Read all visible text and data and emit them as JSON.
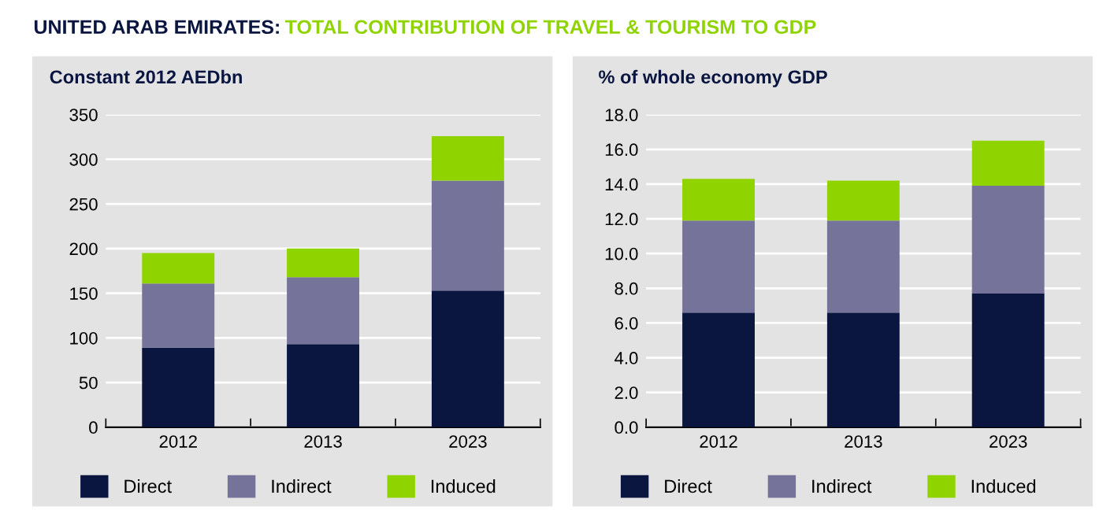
{
  "chart_data": [
    {
      "type": "bar",
      "title": "UNITED ARAB EMIRATES:",
      "subtitle": "TOTAL CONTRIBUTION OF TRAVEL & TOURISM TO GDP",
      "ylabel": "Constant 2012 AEDbn",
      "categories": [
        "2012",
        "2013",
        "2023"
      ],
      "stacked": true,
      "ylim": [
        0,
        350
      ],
      "yticks": [
        0,
        50,
        100,
        150,
        200,
        250,
        300,
        350
      ],
      "grid": "y",
      "legend": "bottom",
      "series": [
        {
          "name": "Direct",
          "color": "#0a1640",
          "values": [
            89,
            93,
            153
          ]
        },
        {
          "name": "Indirect",
          "color": "#75739a",
          "values": [
            72,
            75,
            123
          ]
        },
        {
          "name": "Induced",
          "color": "#8fd400",
          "values": [
            34,
            32,
            50
          ]
        }
      ]
    },
    {
      "type": "bar",
      "ylabel": "% of whole economy GDP",
      "categories": [
        "2012",
        "2013",
        "2023"
      ],
      "stacked": true,
      "ylim": [
        0,
        18
      ],
      "yticks": [
        {
          "value": 0,
          "label": "0.0"
        },
        {
          "value": 2,
          "label": "2.0"
        },
        {
          "value": 4,
          "label": "4.0"
        },
        {
          "value": 6,
          "label": "6.0"
        },
        {
          "value": 8,
          "label": "8.0"
        },
        {
          "value": 10,
          "label": "10.0"
        },
        {
          "value": 12,
          "label": "12.0"
        },
        {
          "value": 14,
          "label": "14.0"
        },
        {
          "value": 16,
          "label": "16.0"
        },
        {
          "value": 18,
          "label": "18.0"
        }
      ],
      "grid": "y",
      "legend": "bottom",
      "series": [
        {
          "name": "Direct",
          "color": "#0a1640",
          "values": [
            6.6,
            6.6,
            7.7
          ]
        },
        {
          "name": "Indirect",
          "color": "#75739a",
          "values": [
            5.3,
            5.3,
            6.2
          ]
        },
        {
          "name": "Induced",
          "color": "#8fd400",
          "values": [
            2.4,
            2.3,
            2.6
          ]
        }
      ]
    }
  ]
}
